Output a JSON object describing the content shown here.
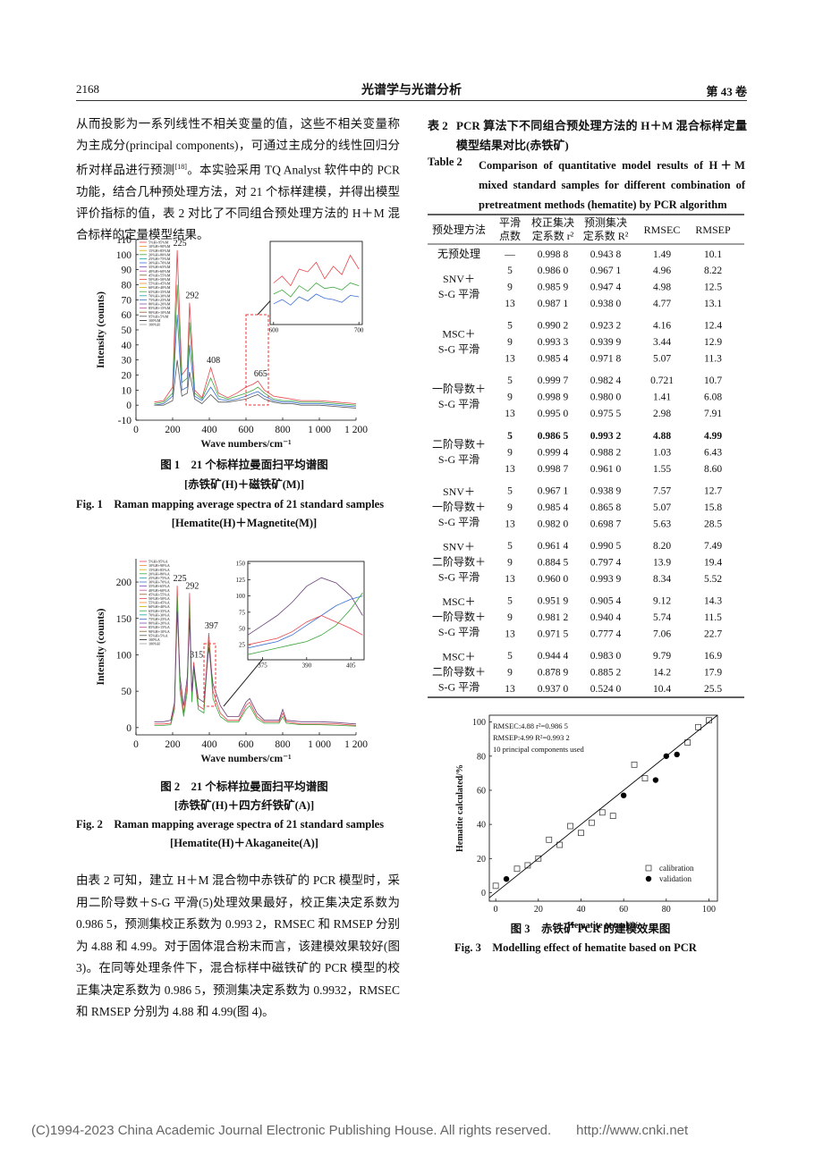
{
  "header": {
    "page": "2168",
    "journal": "光谱学与光谱分析",
    "volume": "第 43 卷"
  },
  "left_text": {
    "para1": [
      "从而投影为一系列线性不相关变量的值，这些不相关变量称为主成分(principal components)，可通过主成分的线性回归分析对样品进行预测",
      "[18]",
      "。本实验采用 TQ Analyst 软件中的 PCR 功能，结合几种预处理方法，对 21 个标样建模，并得出模型评价指标的值，表 2 对比了不同组合预处理方法的 H＋M 混合标样的定量模型结果。"
    ],
    "para2": "由表 2 可知，建立 H＋M 混合物中赤铁矿的 PCR 模型时，采用二阶导数＋S-G 平滑(5)处理效果最好，校正集决定系数为 0.986 5，预测集校正系数为 0.993 2，RMSEC 和 RMSEP 分别为 4.88 和 4.99。对于固体混合粉末而言，该建模效果较好(图 3)。在同等处理条件下，混合标样中磁铁矿的 PCR 模型的校正集决定系数为 0.986 5，预测集决定系数为 0.9932，RMSEC 和 RMSEP 分别为 4.88 和 4.99(图 4)。"
  },
  "figure1": {
    "chart_data": {
      "type": "line",
      "xlabel": "Wave numbers/cm⁻¹",
      "ylabel": "Intensity (counts)",
      "x": [
        100,
        150,
        200,
        225,
        250,
        280,
        292,
        320,
        360,
        408,
        450,
        500,
        550,
        600,
        640,
        665,
        700,
        750,
        800,
        850,
        900,
        1000,
        1100,
        1200
      ],
      "xlim": [
        0,
        1200
      ],
      "ylim": [
        -10,
        110
      ],
      "xticks": [
        0,
        200,
        400,
        600,
        800,
        {
          "value": 1000,
          "label": "1 000"
        },
        {
          "value": 1200,
          "label": "1 200"
        }
      ],
      "yticks": [
        -10,
        0,
        10,
        20,
        30,
        40,
        50,
        60,
        70,
        80,
        90,
        100,
        110
      ],
      "series": [
        {
          "color": "#e8434a",
          "values": [
            2,
            3,
            12,
            103,
            20,
            25,
            68,
            10,
            5,
            25,
            8,
            5,
            8,
            12,
            14,
            16,
            10,
            6,
            5,
            4,
            3,
            3,
            2,
            1
          ]
        },
        {
          "color": "#3aa63a",
          "values": [
            1,
            2,
            8,
            80,
            15,
            18,
            55,
            8,
            4,
            18,
            6,
            4,
            6,
            8,
            10,
            12,
            8,
            4,
            3,
            3,
            2,
            2,
            1,
            0
          ]
        },
        {
          "color": "#3b6fd1",
          "values": [
            0,
            1,
            6,
            60,
            10,
            12,
            40,
            6,
            3,
            12,
            4,
            3,
            4,
            6,
            8,
            9,
            6,
            3,
            2,
            2,
            1,
            1,
            0,
            -1
          ]
        },
        {
          "color": "#555555",
          "values": [
            0,
            0,
            3,
            30,
            6,
            8,
            22,
            4,
            1,
            7,
            2,
            2,
            3,
            4,
            6,
            7,
            4,
            2,
            1,
            1,
            0,
            0,
            -1,
            -2
          ]
        }
      ],
      "legend": [
        {
          "name": "5%H+95%M",
          "color": "#e8434a"
        },
        {
          "name": "10%H+90%M",
          "color": "#f08a24"
        },
        {
          "name": "15%H+85%M",
          "color": "#c9b200"
        },
        {
          "name": "20%H+80%M",
          "color": "#3aa63a"
        },
        {
          "name": "25%H+75%M",
          "color": "#1fa3a3"
        },
        {
          "name": "30%H+70%M",
          "color": "#3b6fd1"
        },
        {
          "name": "35%H+65%M",
          "color": "#7a4cc2"
        },
        {
          "name": "40%H+60%M",
          "color": "#c24c9e"
        },
        {
          "name": "45%H+55%M",
          "color": "#8c5a2b"
        },
        {
          "name": "50%H+50%M",
          "color": "#e8434a"
        },
        {
          "name": "55%H+45%M",
          "color": "#f08a24"
        },
        {
          "name": "60%H+40%M",
          "color": "#c9b200"
        },
        {
          "name": "65%H+35%M",
          "color": "#3aa63a"
        },
        {
          "name": "70%H+30%M",
          "color": "#1fa3a3"
        },
        {
          "name": "75%H+25%M",
          "color": "#3b6fd1"
        },
        {
          "name": "80%H+20%M",
          "color": "#7a4cc2"
        },
        {
          "name": "85%H+15%M",
          "color": "#c24c9e"
        },
        {
          "name": "90%H+10%M",
          "color": "#8c5a2b"
        },
        {
          "name": "95%H+5%M",
          "color": "#555555"
        },
        {
          "name": "100%M",
          "color": "#222222"
        },
        {
          "name": "100%H",
          "color": "#999999"
        }
      ],
      "peak_labels": [
        225,
        292,
        408,
        665
      ],
      "inset": {
        "type": "line",
        "x": [
          600,
          610,
          620,
          630,
          640,
          650,
          660,
          670,
          680,
          690,
          700
        ],
        "xlim": [
          596,
          704
        ],
        "ylim": [
          0,
          60
        ],
        "xticks": [
          600,
          700
        ],
        "series": [
          {
            "color": "#e8434a",
            "values": [
              30,
              35,
              28,
              40,
              38,
              45,
              33,
              42,
              36,
              50,
              40
            ]
          },
          {
            "color": "#3aa63a",
            "values": [
              22,
              25,
              20,
              28,
              24,
              30,
              26,
              27,
              25,
              30,
              28
            ]
          },
          {
            "color": "#3b6fd1",
            "values": [
              15,
              18,
              14,
              20,
              17,
              22,
              19,
              18,
              16,
              21,
              20
            ]
          }
        ]
      }
    },
    "caption_cn": [
      "图 1　21 个标样拉曼面扫平均谱图",
      "[赤铁矿(H)＋磁铁矿(M)]"
    ],
    "caption_en": [
      "Fig. 1　Raman mapping average spectra of 21 standard samples",
      "[Hematite(H)＋Magnetite(M)]"
    ]
  },
  "figure2": {
    "chart_data": {
      "type": "line",
      "xlabel": "Wave numbers/cm⁻¹",
      "ylabel": "Intensity (counts)",
      "x": [
        100,
        150,
        190,
        210,
        225,
        240,
        260,
        280,
        292,
        305,
        315,
        340,
        370,
        397,
        420,
        460,
        500,
        560,
        600,
        620,
        660,
        700,
        780,
        800,
        820,
        900,
        1000,
        1100,
        1200
      ],
      "xlim": [
        0,
        1200
      ],
      "ylim": [
        -10,
        232
      ],
      "xticks": [
        0,
        200,
        400,
        600,
        800,
        {
          "value": 1000,
          "label": "1 000"
        },
        {
          "value": 1200,
          "label": "1 200"
        }
      ],
      "yticks": [
        0,
        50,
        100,
        150,
        200
      ],
      "series": [
        {
          "color": "#e8434a",
          "values": [
            5,
            5,
            6,
            30,
            195,
            60,
            20,
            60,
            185,
            40,
            90,
            30,
            25,
            130,
            50,
            20,
            10,
            10,
            30,
            35,
            15,
            8,
            8,
            20,
            8,
            5,
            5,
            5,
            3
          ]
        },
        {
          "color": "#3aa63a",
          "values": [
            3,
            3,
            4,
            25,
            180,
            50,
            15,
            50,
            170,
            35,
            80,
            25,
            20,
            120,
            40,
            15,
            8,
            8,
            25,
            30,
            12,
            6,
            6,
            15,
            6,
            4,
            4,
            3,
            2
          ]
        },
        {
          "color": "#6b3f7a",
          "values": [
            8,
            8,
            10,
            35,
            160,
            70,
            30,
            70,
            150,
            50,
            85,
            40,
            35,
            110,
            60,
            30,
            15,
            15,
            35,
            40,
            20,
            10,
            10,
            25,
            10,
            8,
            8,
            7,
            5
          ]
        }
      ],
      "legend": [
        {
          "name": "5%H+95%A",
          "color": "#e8434a"
        },
        {
          "name": "10%H+90%A",
          "color": "#f08a24"
        },
        {
          "name": "15%H+85%A",
          "color": "#c9b200"
        },
        {
          "name": "20%H+80%A",
          "color": "#3aa63a"
        },
        {
          "name": "25%H+75%A",
          "color": "#1fa3a3"
        },
        {
          "name": "30%H+70%A",
          "color": "#3b6fd1"
        },
        {
          "name": "35%H+65%A",
          "color": "#7a4cc2"
        },
        {
          "name": "40%H+60%A",
          "color": "#c24c9e"
        },
        {
          "name": "45%H+55%A",
          "color": "#8c5a2b"
        },
        {
          "name": "50%H+50%A",
          "color": "#e8434a"
        },
        {
          "name": "55%H+45%A",
          "color": "#f08a24"
        },
        {
          "name": "60%H+40%A",
          "color": "#c9b200"
        },
        {
          "name": "65%H+35%A",
          "color": "#3aa63a"
        },
        {
          "name": "70%H+30%A",
          "color": "#1fa3a3"
        },
        {
          "name": "75%H+25%A",
          "color": "#3b6fd1"
        },
        {
          "name": "80%H+20%A",
          "color": "#7a4cc2"
        },
        {
          "name": "85%H+15%A",
          "color": "#c24c9e"
        },
        {
          "name": "90%H+10%A",
          "color": "#8c5a2b"
        },
        {
          "name": "95%H+5%A",
          "color": "#555555"
        },
        {
          "name": "100%A",
          "color": "#222222"
        },
        {
          "name": "100%H",
          "color": "#999999"
        }
      ],
      "peak_labels": [
        225,
        292,
        315,
        397
      ],
      "inset": {
        "type": "line",
        "x": [
          370,
          375,
          380,
          385,
          390,
          395,
          400,
          405,
          409
        ],
        "xlim": [
          370,
          409.5
        ],
        "ylim": [
          2,
          153
        ],
        "xticks": [
          375,
          390,
          405
        ],
        "yticks": [
          25,
          50,
          75,
          100,
          125,
          150
        ],
        "series": [
          {
            "color": "#6b3f7a",
            "values": [
              40,
              55,
              70,
              90,
              115,
              128,
              120,
              100,
              70
            ]
          },
          {
            "color": "#3b6fd1",
            "values": [
              20,
              25,
              30,
              40,
              55,
              70,
              85,
              95,
              100
            ]
          },
          {
            "color": "#3aa63a",
            "values": [
              10,
              15,
              20,
              25,
              30,
              40,
              55,
              80,
              105
            ]
          },
          {
            "color": "#e8434a",
            "values": [
              25,
              30,
              35,
              45,
              60,
              70,
              60,
              50,
              40
            ]
          }
        ]
      }
    },
    "caption_cn": [
      "图 2　21 个标样拉曼面扫平均谱图",
      "[赤铁矿(H)＋四方纤铁矿(A)]"
    ],
    "caption_en": [
      "Fig. 2　Raman mapping average spectra of 21 standard samples",
      "[Hematite(H)＋Akaganeite(A)]"
    ]
  },
  "table2": {
    "label_cn": "表 2",
    "title_cn": "PCR 算法下不同组合预处理方法的 H＋M 混合标样定量模型结果对比(赤铁矿)",
    "label_en": "Table 2",
    "title_en": "Comparison of quantitative model results of H＋M mixed standard samples for different combination of pretreatment methods (hematite) by PCR algorithm",
    "columns": [
      [
        "预处理方法"
      ],
      [
        "平滑",
        "点数"
      ],
      [
        "校正集决",
        "定系数 r²"
      ],
      [
        "预测集决",
        "定系数 R²"
      ],
      [
        "RMSEC"
      ],
      [
        "RMSEP"
      ]
    ],
    "groups": [
      {
        "method": [
          "无预处理"
        ],
        "rows": [
          [
            "—",
            "0.998 8",
            "0.943 8",
            "1.49",
            "10.1"
          ]
        ]
      },
      {
        "method": [
          "SNV＋",
          "S-G 平滑"
        ],
        "rows": [
          [
            "5",
            "0.986 0",
            "0.967 1",
            "4.96",
            "8.22"
          ],
          [
            "9",
            "0.985 9",
            "0.947 4",
            "4.98",
            "12.5"
          ],
          [
            "13",
            "0.987 1",
            "0.938 0",
            "4.77",
            "13.1"
          ]
        ]
      },
      {
        "method": [
          "MSC＋",
          "S-G 平滑"
        ],
        "rows": [
          [
            "5",
            "0.990 2",
            "0.923 2",
            "4.16",
            "12.4"
          ],
          [
            "9",
            "0.993 3",
            "0.939 9",
            "3.44",
            "12.9"
          ],
          [
            "13",
            "0.985 4",
            "0.971 8",
            "5.07",
            "11.3"
          ]
        ]
      },
      {
        "method": [
          "一阶导数＋",
          "S-G 平滑"
        ],
        "rows": [
          [
            "5",
            "0.999 7",
            "0.982 4",
            "0.721",
            "10.7"
          ],
          [
            "9",
            "0.998 9",
            "0.980 0",
            "1.41",
            "6.08"
          ],
          [
            "13",
            "0.995 0",
            "0.975 5",
            "2.98",
            "7.91"
          ]
        ]
      },
      {
        "method": [
          "二阶导数＋",
          "S-G 平滑"
        ],
        "bold_rows": [
          0
        ],
        "rows": [
          [
            "5",
            "0.986 5",
            "0.993 2",
            "4.88",
            "4.99"
          ],
          [
            "9",
            "0.999 4",
            "0.988 2",
            "1.03",
            "6.43"
          ],
          [
            "13",
            "0.998 7",
            "0.961 0",
            "1.55",
            "8.60"
          ]
        ]
      },
      {
        "method": [
          "SNV＋",
          "一阶导数＋",
          "S-G 平滑"
        ],
        "rows": [
          [
            "5",
            "0.967 1",
            "0.938 9",
            "7.57",
            "12.7"
          ],
          [
            "9",
            "0.985 4",
            "0.865 8",
            "5.07",
            "15.8"
          ],
          [
            "13",
            "0.982 0",
            "0.698 7",
            "5.63",
            "28.5"
          ]
        ]
      },
      {
        "method": [
          "SNV＋",
          "二阶导数＋",
          "S-G 平滑"
        ],
        "rows": [
          [
            "5",
            "0.961 4",
            "0.990 5",
            "8.20",
            "7.49"
          ],
          [
            "9",
            "0.884 5",
            "0.797 4",
            "13.9",
            "19.4"
          ],
          [
            "13",
            "0.960 0",
            "0.993 9",
            "8.34",
            "5.52"
          ]
        ]
      },
      {
        "method": [
          "MSC＋",
          "一阶导数＋",
          "S-G 平滑"
        ],
        "rows": [
          [
            "5",
            "0.951 9",
            "0.905 4",
            "9.12",
            "14.3"
          ],
          [
            "9",
            "0.981 2",
            "0.940 4",
            "5.74",
            "11.5"
          ],
          [
            "13",
            "0.971 5",
            "0.777 4",
            "7.06",
            "22.7"
          ]
        ]
      },
      {
        "method": [
          "MSC＋",
          "二阶导数＋",
          "S-G 平滑"
        ],
        "rows": [
          [
            "5",
            "0.944 4",
            "0.983 0",
            "9.79",
            "16.9"
          ],
          [
            "9",
            "0.878 9",
            "0.885 2",
            "14.2",
            "17.9"
          ],
          [
            "13",
            "0.937 0",
            "0.524 0",
            "10.4",
            "25.5"
          ]
        ]
      }
    ]
  },
  "figure3": {
    "chart_data": {
      "type": "scatter",
      "xlabel": "Hematite actual/%",
      "ylabel": "Hematite calculated/%",
      "xlim": [
        -3,
        104
      ],
      "ylim": [
        -5,
        104
      ],
      "xticks": [
        0,
        20,
        40,
        60,
        80,
        100
      ],
      "yticks": [
        0,
        20,
        40,
        60,
        80,
        100
      ],
      "annotations": [
        "RMSEC:4.88 r²=0.986 5",
        "RMSEP:4.99 R²=0.993 2",
        "10 principal components used"
      ],
      "series": [
        {
          "name": "calibration",
          "marker": "square",
          "color": "#444444",
          "x": [
            0,
            10,
            15,
            20,
            25,
            30,
            35,
            40,
            45,
            50,
            55,
            65,
            70,
            90,
            95,
            100
          ],
          "values": [
            4,
            14,
            16,
            20,
            31,
            28,
            39,
            35,
            41,
            47,
            45,
            75,
            67,
            88,
            97,
            101
          ]
        },
        {
          "name": "validation",
          "marker": "circle",
          "color": "#000000",
          "x": [
            5,
            60,
            75,
            80,
            85
          ],
          "values": [
            8,
            57,
            66,
            80,
            81
          ]
        }
      ]
    },
    "caption_cn": "图 3　赤铁矿 PCR 的建模效果图",
    "caption_en": "Fig. 3　Modelling effect of hematite based on PCR"
  },
  "footer": {
    "copyright": "(C)1994-2023 China Academic Journal Electronic Publishing House. All rights reserved.",
    "url": "http://www.cnki.net"
  }
}
